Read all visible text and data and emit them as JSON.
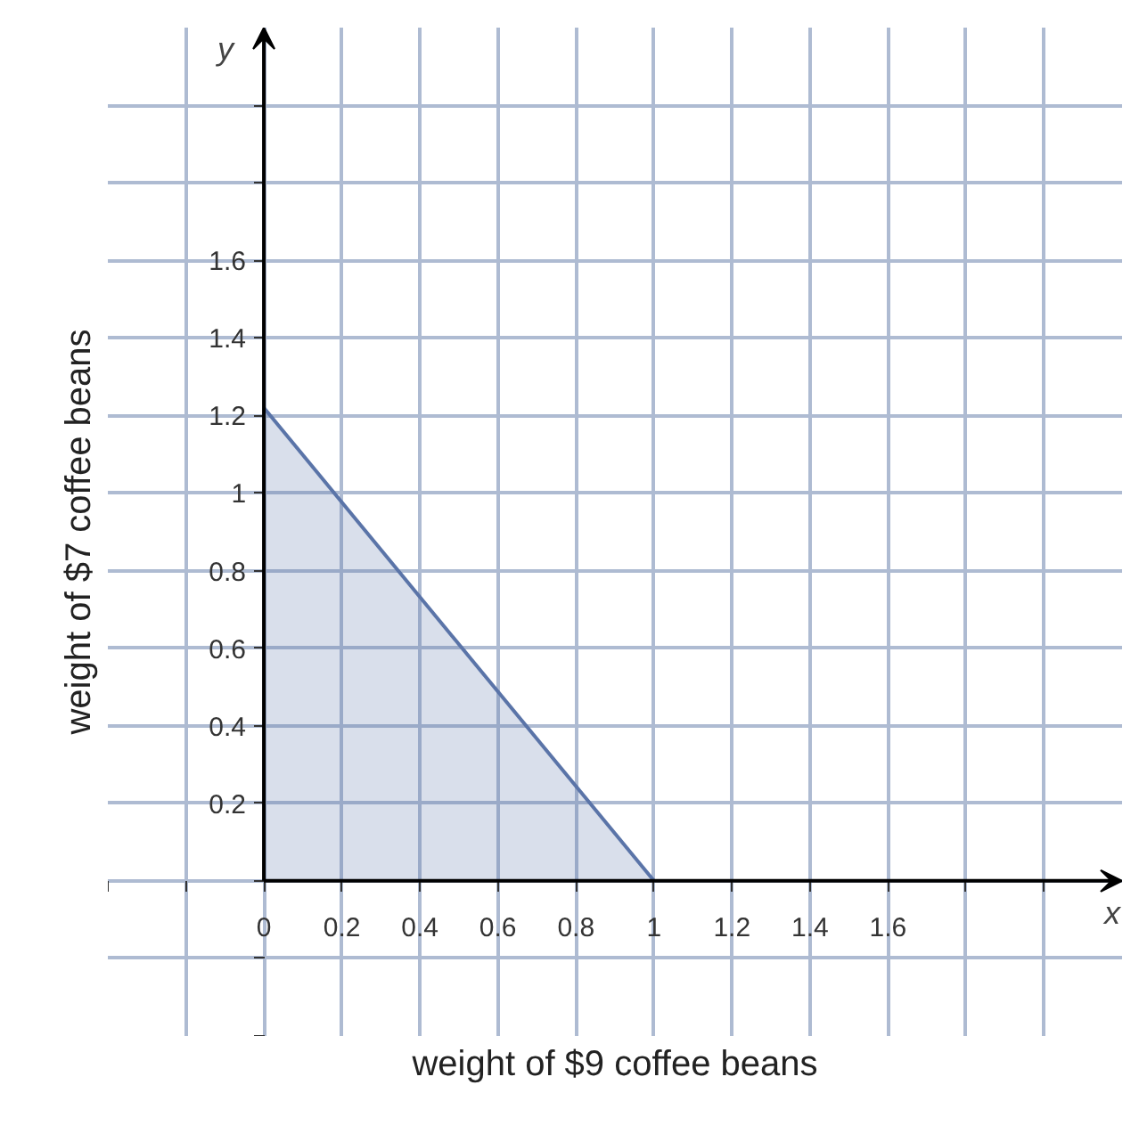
{
  "chart_data": {
    "type": "area",
    "x": [
      0,
      1
    ],
    "series": [
      {
        "color": "#5a74a8",
        "values": [
          1.22,
          0
        ]
      }
    ],
    "xlabel": "weight of $9 coffee beans",
    "ylabel": "weight of $7 coffee beans",
    "annotations": [
      "x",
      "y"
    ],
    "xlim": [
      -0.4,
      2.2
    ],
    "ylim": [
      -0.4,
      2.2
    ],
    "xticks": [
      {
        "value": -0.4,
        "label": null
      },
      {
        "value": -0.2,
        "label": null
      },
      0,
      0.2,
      0.4,
      0.6,
      0.8,
      1,
      1.2,
      1.4,
      1.6,
      {
        "value": 1.8,
        "label": null
      },
      {
        "value": 2.0,
        "label": null
      }
    ],
    "yticks": [
      {
        "value": -0.4,
        "label": null
      },
      {
        "value": -0.2,
        "label": null
      },
      {
        "value": 0,
        "label": null
      },
      0.2,
      0.4,
      0.6,
      0.8,
      1,
      1.2,
      1.4,
      1.6,
      {
        "value": 1.8,
        "label": null
      },
      {
        "value": 2.0,
        "label": null
      }
    ],
    "grid": true
  }
}
